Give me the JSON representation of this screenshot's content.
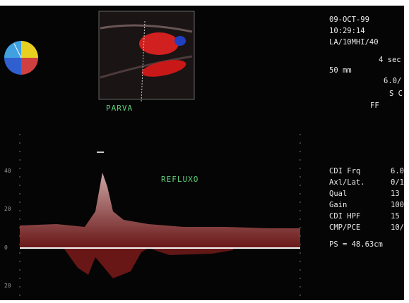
{
  "header": {
    "date": "09-OCT-99",
    "time": "10:29:14",
    "probe": "LA/10MHI/40",
    "sweep": "4 sec",
    "depth": "50 mm",
    "freq": "6.0/",
    "scale": "S C",
    "filter": "FF"
  },
  "labels": {
    "vessel": "PARVA",
    "finding": "REFLUXO"
  },
  "params": [
    [
      "CDI Frq",
      "6.0"
    ],
    [
      "Axl/Lat.",
      "0/1"
    ],
    [
      "Qual",
      "13"
    ],
    [
      "Gain",
      "100"
    ],
    [
      "CDI HPF",
      "15"
    ],
    [
      "CMP/PCE",
      "10/"
    ]
  ],
  "measurement": "PS = 48.63cm",
  "scale_labels": [
    "40",
    "20",
    "0",
    "20"
  ]
}
